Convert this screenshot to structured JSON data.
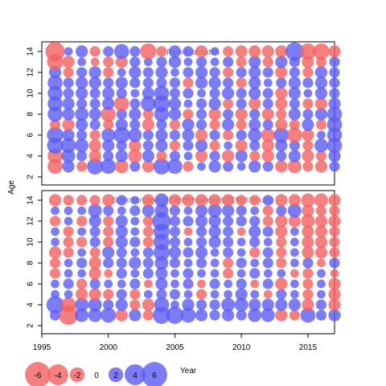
{
  "chart_data": [
    {
      "type": "scatter",
      "subtype": "bubble-residuals",
      "title": "Residual catch",
      "xlabel": "",
      "ylabel": "Age",
      "xlim": [
        1995,
        2017
      ],
      "ylim": [
        2,
        14
      ],
      "x_ticks": [
        1995,
        2000,
        2005,
        2010,
        2015
      ],
      "y_ticks": [
        2,
        4,
        6,
        8,
        10,
        12,
        14
      ],
      "years": [
        1996,
        1997,
        1998,
        1999,
        2000,
        2001,
        2002,
        2003,
        2004,
        2005,
        2006,
        2007,
        2008,
        2009,
        2010,
        2011,
        2012,
        2013,
        2014,
        2015,
        2016,
        2017
      ],
      "ages": [
        3,
        4,
        5,
        6,
        7,
        8,
        9,
        10,
        11,
        12,
        13,
        14
      ],
      "residuals": [
        [
          -1.2,
          0.8,
          -0.6,
          1.4,
          1.2,
          -1.0,
          0.6,
          -0.8,
          1.4,
          1.2,
          -0.6,
          0.4,
          0.8,
          0.6,
          0.4,
          0.8,
          0.6,
          -0.8,
          -1.0,
          -0.6,
          -0.8,
          0.6
        ],
        [
          -1.2,
          1.0,
          0.6,
          -0.8,
          0.6,
          0.8,
          -1.0,
          0.8,
          -0.6,
          0.6,
          0.4,
          -0.8,
          0.6,
          -0.8,
          0.8,
          -0.6,
          -0.8,
          0.6,
          0.8,
          -0.8,
          -0.6,
          0.8
        ],
        [
          1.4,
          1.2,
          1.0,
          -0.8,
          0.8,
          0.6,
          -0.8,
          0.6,
          0.8,
          -0.6,
          0.6,
          0.8,
          -0.6,
          0.4,
          -0.8,
          0.6,
          -0.8,
          0.8,
          0.6,
          -0.6,
          1.0,
          1.2
        ],
        [
          1.4,
          0.8,
          0.6,
          -0.6,
          1.0,
          1.4,
          1.0,
          0.6,
          0.8,
          0.6,
          0.8,
          -0.8,
          0.6,
          -0.6,
          0.6,
          1.0,
          -1.0,
          1.2,
          -1.2,
          -0.8,
          0.4,
          1.2
        ],
        [
          -0.6,
          -0.8,
          0.8,
          0.6,
          -0.6,
          0.8,
          0.6,
          -0.8,
          0.6,
          -0.6,
          0.8,
          0.6,
          -0.6,
          0.8,
          -0.6,
          0.8,
          0.6,
          -0.8,
          -0.6,
          0.8,
          -0.6,
          1.2
        ],
        [
          1.2,
          0.8,
          1.0,
          0.8,
          -1.2,
          0.6,
          0.8,
          -0.6,
          1.2,
          0.8,
          -0.6,
          0.6,
          -0.8,
          0.6,
          -0.8,
          0.6,
          -0.8,
          -0.6,
          0.8,
          0.6,
          0.8,
          1.2
        ],
        [
          1.2,
          0.8,
          0.6,
          0.6,
          0.8,
          -1.2,
          0.6,
          1.2,
          1.4,
          0.8,
          0.4,
          0.6,
          0.8,
          -0.6,
          0.6,
          -0.8,
          0.6,
          -0.8,
          0.6,
          -0.6,
          -0.8,
          0.8
        ],
        [
          1.2,
          0.6,
          0.8,
          0.6,
          0.8,
          0.6,
          0.4,
          0.8,
          1.2,
          0.6,
          0.6,
          0.4,
          0.6,
          0.8,
          0.6,
          0.8,
          0.6,
          -0.8,
          0.8,
          0.4,
          0.8,
          0.6
        ],
        [
          1.2,
          0.6,
          0.8,
          0.8,
          0.6,
          0.8,
          0.6,
          0.6,
          0.6,
          0.6,
          -0.6,
          0.8,
          0.8,
          0.6,
          -0.6,
          0.8,
          0.4,
          0.6,
          0.8,
          0.6,
          0.8,
          0.6
        ],
        [
          0.8,
          -0.6,
          0.6,
          0.8,
          -0.6,
          0.4,
          0.8,
          0.6,
          0.8,
          0.4,
          0.6,
          0.8,
          0.6,
          -0.6,
          0.6,
          0.8,
          0.6,
          -0.8,
          0.6,
          -0.6,
          0.8,
          0.6
        ],
        [
          -1.4,
          -0.8,
          0.4,
          -0.4,
          -0.6,
          -0.8,
          0.6,
          0.4,
          0.6,
          0.8,
          0.4,
          0.6,
          0.4,
          0.6,
          -0.6,
          0.8,
          -0.6,
          0.8,
          0.6,
          -0.8,
          -0.6,
          0.6
        ],
        [
          -2.0,
          0.4,
          0.8,
          -0.6,
          0.6,
          1.2,
          0.6,
          -1.4,
          -0.6,
          0.8,
          0.6,
          -0.8,
          0.4,
          -0.6,
          -0.8,
          -0.8,
          -0.8,
          -0.8,
          1.8,
          -1.4,
          -1.4,
          -0.8
        ]
      ]
    },
    {
      "type": "scatter",
      "subtype": "bubble-residuals",
      "title": "Summersurvey(Catch:Numbers)(Effort:hours)",
      "xlabel": "Year",
      "ylabel": "Age",
      "xlim": [
        1995,
        2017
      ],
      "ylim": [
        2,
        14
      ],
      "x_ticks": [
        1995,
        2000,
        2005,
        2010,
        2015
      ],
      "y_ticks": [
        2,
        4,
        6,
        8,
        10,
        12,
        14
      ],
      "years": [
        1996,
        1997,
        1998,
        1999,
        2000,
        2001,
        2002,
        2003,
        2004,
        2005,
        2006,
        2007,
        2008,
        2009,
        2010,
        2011,
        2012,
        2013,
        2014,
        2015,
        2016,
        2017
      ],
      "ages": [
        3,
        4,
        5,
        6,
        7,
        8,
        9,
        10,
        11,
        12,
        13,
        14
      ],
      "residuals": [
        [
          0.6,
          -2.0,
          1.0,
          1.0,
          1.2,
          -0.8,
          0.8,
          -0.6,
          1.6,
          1.6,
          1.2,
          0.8,
          0.6,
          0.8,
          0.6,
          1.0,
          1.0,
          -0.8,
          -0.6,
          1.2,
          0.6,
          0.8
        ],
        [
          1.6,
          -1.2,
          1.0,
          1.0,
          0.6,
          0.8,
          -0.6,
          -0.8,
          1.2,
          0.4,
          0.8,
          0.6,
          0.6,
          1.0,
          1.0,
          0.8,
          0.8,
          0.8,
          0.8,
          -0.8,
          0.6,
          -0.8
        ],
        [
          0.4,
          0.4,
          -0.8,
          -0.8,
          -0.6,
          0.6,
          -0.6,
          0.4,
          0.6,
          0.6,
          0.4,
          -0.6,
          0.4,
          0.4,
          0.8,
          0.4,
          -0.4,
          0.6,
          0.4,
          -0.6,
          0.4,
          -0.8
        ],
        [
          0.4,
          0.6,
          -0.6,
          0.6,
          0.4,
          0.4,
          0.6,
          -0.4,
          0.8,
          0.4,
          0.6,
          -0.4,
          0.6,
          0.4,
          0.6,
          -0.4,
          0.6,
          -0.8,
          0.4,
          -0.6,
          0.4,
          -0.8
        ],
        [
          -0.6,
          0.4,
          0.4,
          -0.8,
          -0.4,
          0.6,
          0.4,
          0.6,
          0.8,
          0.4,
          0.6,
          0.4,
          0.4,
          -0.6,
          0.4,
          0.6,
          0.4,
          0.4,
          -0.4,
          -0.6,
          0.4,
          -0.4
        ],
        [
          -0.6,
          0.4,
          0.6,
          -0.8,
          0.6,
          0.6,
          0.8,
          0.6,
          1.0,
          0.6,
          0.4,
          0.6,
          0.4,
          -0.6,
          0.6,
          0.4,
          0.6,
          -0.6,
          0.4,
          0.6,
          -0.4,
          0.6
        ],
        [
          -0.8,
          -0.6,
          0.4,
          -0.6,
          0.8,
          0.6,
          0.4,
          0.6,
          1.4,
          0.8,
          0.6,
          0.8,
          0.4,
          0.6,
          0.4,
          -0.6,
          0.6,
          -0.6,
          0.4,
          -0.8,
          -0.8,
          -0.6
        ],
        [
          0.4,
          -0.6,
          -0.6,
          0.6,
          -0.6,
          0.8,
          0.6,
          -0.6,
          1.4,
          0.6,
          0.4,
          0.6,
          0.8,
          0.6,
          0.4,
          0.6,
          0.4,
          -0.6,
          0.4,
          -0.8,
          -0.8,
          -0.6
        ],
        [
          0.4,
          -0.6,
          0.4,
          0.6,
          -0.6,
          0.8,
          0.4,
          -0.6,
          1.4,
          0.6,
          -0.4,
          0.6,
          0.8,
          0.6,
          -0.4,
          0.8,
          0.6,
          -0.8,
          0.4,
          -0.8,
          -0.8,
          -0.6
        ],
        [
          -0.6,
          0.4,
          -0.6,
          0.8,
          -0.6,
          0.8,
          0.4,
          -0.6,
          1.8,
          0.6,
          0.6,
          0.8,
          0.8,
          0.6,
          0.6,
          0.6,
          -0.6,
          -0.8,
          -0.8,
          -1.0,
          -0.8,
          -0.8
        ],
        [
          0.4,
          0.4,
          0.4,
          1.0,
          0.6,
          0.4,
          0.6,
          0.8,
          1.0,
          0.6,
          0.4,
          0.8,
          1.0,
          0.8,
          0.6,
          0.4,
          -0.6,
          0.6,
          1.0,
          -0.8,
          -0.6,
          -0.6
        ],
        [
          -0.8,
          -0.6,
          -0.6,
          -0.6,
          -0.8,
          0.6,
          0.4,
          -0.8,
          1.0,
          -0.8,
          -0.8,
          -0.8,
          -0.8,
          -0.8,
          -0.6,
          -0.6,
          0.6,
          -0.8,
          -0.8,
          -1.0,
          -1.0,
          -0.8
        ]
      ]
    }
  ],
  "legend": {
    "values": [
      -6,
      -4,
      -2,
      0,
      2,
      4,
      6
    ],
    "labels": [
      "-6",
      "-4",
      "-2",
      "0",
      "2",
      "4",
      "6"
    ]
  },
  "colors": {
    "positive": "#5b5bf5",
    "negative": "#f46060",
    "title": "#808080"
  },
  "axis_labels": {
    "x": "Year",
    "y": "Age"
  }
}
